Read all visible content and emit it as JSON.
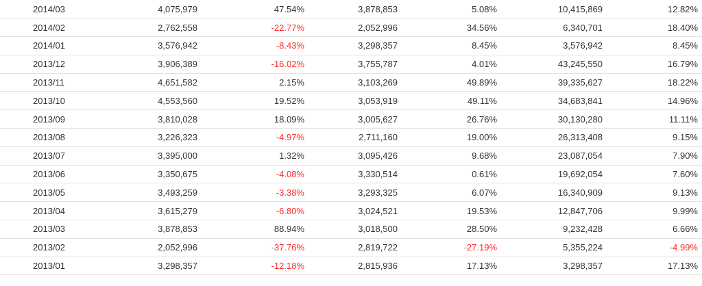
{
  "colors": {
    "text": "#333333",
    "negative": "#ff2a2a",
    "row_divider": "#e2e2e2"
  },
  "rows": [
    [
      "2014/03",
      "4,075,979",
      "47.54%",
      "3,878,853",
      "5.08%",
      "10,415,869",
      "12.82%"
    ],
    [
      "2014/02",
      "2,762,558",
      "-22.77%",
      "2,052,996",
      "34.56%",
      "6,340,701",
      "18.40%"
    ],
    [
      "2014/01",
      "3,576,942",
      "-8.43%",
      "3,298,357",
      "8.45%",
      "3,576,942",
      "8.45%"
    ],
    [
      "2013/12",
      "3,906,389",
      "-16.02%",
      "3,755,787",
      "4.01%",
      "43,245,550",
      "16.79%"
    ],
    [
      "2013/11",
      "4,651,582",
      "2.15%",
      "3,103,269",
      "49.89%",
      "39,335,627",
      "18.22%"
    ],
    [
      "2013/10",
      "4,553,560",
      "19.52%",
      "3,053,919",
      "49.11%",
      "34,683,841",
      "14.96%"
    ],
    [
      "2013/09",
      "3,810,028",
      "18.09%",
      "3,005,627",
      "26.76%",
      "30,130,280",
      "11.11%"
    ],
    [
      "2013/08",
      "3,226,323",
      "-4.97%",
      "2,711,160",
      "19.00%",
      "26,313,408",
      "9.15%"
    ],
    [
      "2013/07",
      "3,395,000",
      "1.32%",
      "3,095,426",
      "9.68%",
      "23,087,054",
      "7.90%"
    ],
    [
      "2013/06",
      "3,350,675",
      "-4.08%",
      "3,330,514",
      "0.61%",
      "19,692,054",
      "7.60%"
    ],
    [
      "2013/05",
      "3,493,259",
      "-3.38%",
      "3,293,325",
      "6.07%",
      "16,340,909",
      "9.13%"
    ],
    [
      "2013/04",
      "3,615,279",
      "-6.80%",
      "3,024,521",
      "19.53%",
      "12,847,706",
      "9.99%"
    ],
    [
      "2013/03",
      "3,878,853",
      "88.94%",
      "3,018,500",
      "28.50%",
      "9,232,428",
      "6.66%"
    ],
    [
      "2013/02",
      "2,052,996",
      "-37.76%",
      "2,819,722",
      "-27.19%",
      "5,355,224",
      "-4.99%"
    ],
    [
      "2013/01",
      "3,298,357",
      "-12.18%",
      "2,815,936",
      "17.13%",
      "3,298,357",
      "17.13%"
    ]
  ]
}
